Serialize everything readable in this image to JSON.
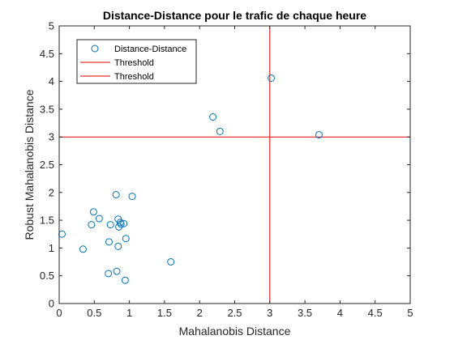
{
  "chart_data": {
    "type": "scatter",
    "title": "Distance-Distance pour le trafic de chaque heure",
    "xlabel": "Mahalanobis Distance",
    "ylabel": "Robust Mahalanobis Distance",
    "xlim": [
      0,
      5
    ],
    "ylim": [
      0,
      5
    ],
    "xticks": [
      "0",
      "0.5",
      "1",
      "1.5",
      "2",
      "2.5",
      "3",
      "3.5",
      "4",
      "4.5",
      "5"
    ],
    "yticks": [
      "0",
      "0.5",
      "1",
      "1.5",
      "2",
      "2.5",
      "3",
      "3.5",
      "4",
      "4.5",
      "5"
    ],
    "grid": false,
    "legend_position": "top-left",
    "series": [
      {
        "name": "Distance-Distance",
        "marker": "open-circle",
        "color": "#0072BD",
        "points": [
          [
            0.04,
            1.25
          ],
          [
            0.34,
            0.98
          ],
          [
            0.46,
            1.42
          ],
          [
            0.49,
            1.65
          ],
          [
            0.57,
            1.53
          ],
          [
            0.71,
            1.11
          ],
          [
            0.73,
            1.42
          ],
          [
            0.81,
            1.96
          ],
          [
            0.84,
            1.52
          ],
          [
            0.85,
            1.38
          ],
          [
            0.87,
            1.46
          ],
          [
            0.88,
            1.43
          ],
          [
            0.92,
            1.44
          ],
          [
            0.84,
            1.03
          ],
          [
            0.95,
            1.17
          ],
          [
            0.7,
            0.54
          ],
          [
            0.82,
            0.58
          ],
          [
            0.94,
            0.42
          ],
          [
            1.04,
            1.93
          ],
          [
            1.59,
            0.75
          ],
          [
            2.19,
            3.36
          ],
          [
            2.29,
            3.1
          ],
          [
            3.02,
            4.06
          ],
          [
            3.7,
            3.04
          ]
        ]
      },
      {
        "name": "Threshold",
        "kind": "vline",
        "x": 3,
        "color": "#E00000"
      },
      {
        "name": "Threshold",
        "kind": "hline",
        "y": 3,
        "color": "#E00000"
      }
    ]
  }
}
